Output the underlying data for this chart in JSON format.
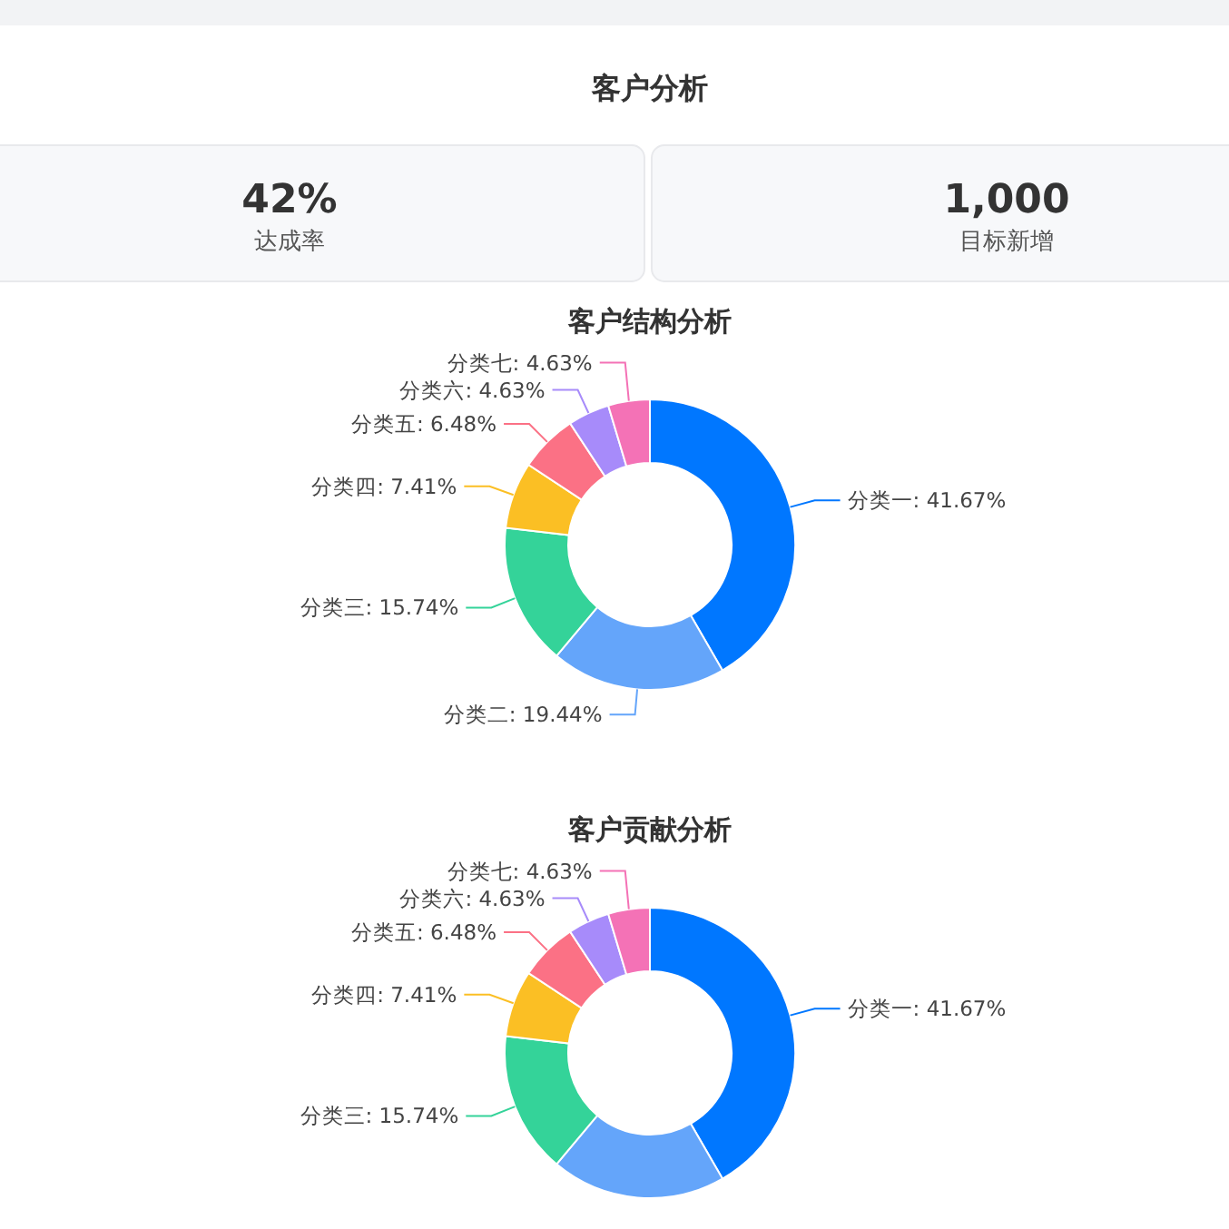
{
  "chart_data": [
    {
      "type": "other",
      "title": "客户分析",
      "annotations": [
        "42%",
        "达成率",
        "1,000",
        "目标新增"
      ]
    },
    {
      "type": "donut",
      "title": "客户结构分析",
      "categories": [
        "分类一",
        "分类二",
        "分类三",
        "分类四",
        "分类五",
        "分类六",
        "分类七"
      ],
      "values": [
        41.67,
        19.44,
        15.74,
        7.41,
        6.48,
        4.63,
        4.63
      ],
      "value_labels": [
        "41.67%",
        "19.44%",
        "15.74%",
        "7.41%",
        "6.48%",
        "4.63%",
        "4.63%"
      ],
      "colors": [
        "#0077ff",
        "#64a5fa",
        "#34d399",
        "#fbbf24",
        "#fb7185",
        "#a78bfa",
        "#f472b6"
      ]
    },
    {
      "type": "donut",
      "title": "客户贡献分析",
      "categories": [
        "分类一",
        null,
        "分类三",
        "分类四",
        "分类五",
        "分类六",
        "分类七"
      ],
      "values": [
        41.67,
        19.44,
        15.74,
        7.41,
        6.48,
        4.63,
        4.63
      ],
      "value_labels": [
        "41.67%",
        null,
        "15.74%",
        "7.41%",
        "6.48%",
        "4.63%",
        "4.63%"
      ],
      "colors": [
        "#0077ff",
        "#64a5fa",
        "#34d399",
        "#fbbf24",
        "#fb7185",
        "#a78bfa",
        "#f472b6"
      ]
    }
  ]
}
